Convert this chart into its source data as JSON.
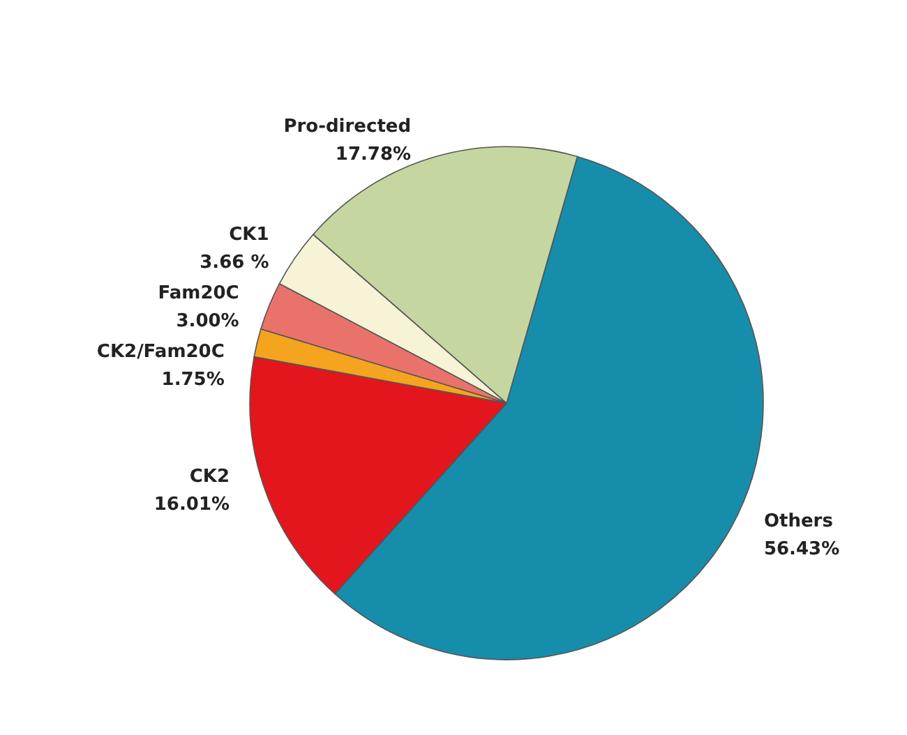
{
  "chart_data": {
    "type": "pie",
    "categories": [
      "Others",
      "CK2",
      "CK2/Fam20C",
      "Fam20C",
      "CK1",
      "Pro-directed"
    ],
    "values": [
      56.43,
      16.01,
      1.75,
      3.0,
      3.66,
      17.78
    ],
    "colors": [
      "#168dab",
      "#e3161d",
      "#f5a41f",
      "#e9736b",
      "#f6f3d6",
      "#c6d6a0"
    ],
    "value_labels": [
      "56.43%",
      "16.01%",
      "1.75%",
      "3.00%",
      "3.66 %",
      "17.78%"
    ],
    "legend": false
  }
}
